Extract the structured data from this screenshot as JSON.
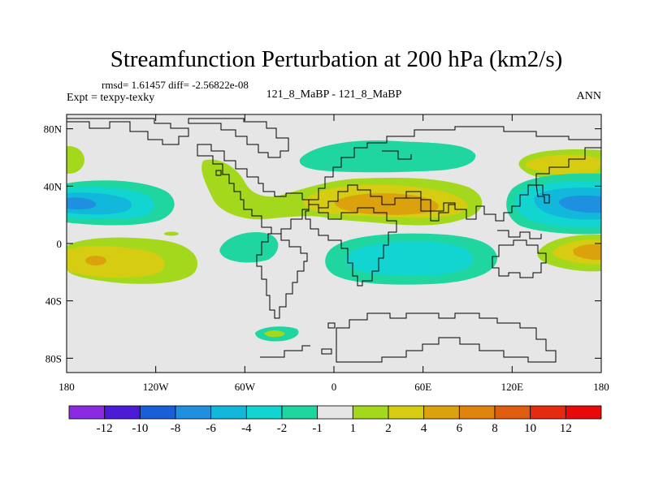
{
  "chart_data": {
    "type": "heatmap",
    "subtype": "filled-contour-map",
    "title": "Streamfunction Perturbation at 200 hPa (km2/s)",
    "stats_text": "rmsd= 1.61457 diff= -2.56822e-08",
    "experiment_label": "Expt = texpy-texky",
    "case_label": "121_8_MaBP - 121_8_MaBP",
    "season_label": "ANN",
    "x_axis": {
      "range": [
        -180,
        180
      ],
      "ticks": [
        {
          "value": -180,
          "label": "180"
        },
        {
          "value": -120,
          "label": "120W"
        },
        {
          "value": -60,
          "label": "60W"
        },
        {
          "value": 0,
          "label": "0"
        },
        {
          "value": 60,
          "label": "60E"
        },
        {
          "value": 120,
          "label": "120E"
        },
        {
          "value": 180,
          "label": "180"
        }
      ]
    },
    "y_axis": {
      "range": [
        -90,
        90
      ],
      "ticks": [
        {
          "value": 80,
          "label": "80N"
        },
        {
          "value": 40,
          "label": "40N"
        },
        {
          "value": 0,
          "label": "0"
        },
        {
          "value": -40,
          "label": "40S"
        },
        {
          "value": -80,
          "label": "80S"
        }
      ]
    },
    "colorbar": {
      "labels": [
        "-12",
        "-10",
        "-8",
        "-6",
        "-4",
        "-2",
        "-1",
        "1",
        "2",
        "4",
        "6",
        "8",
        "10",
        "12"
      ],
      "colors": [
        "#8a2be2",
        "#4b1bd6",
        "#1a5fd8",
        "#1f8fe0",
        "#12b8dc",
        "#12d4d0",
        "#1fd6a0",
        "#e6e6e6",
        "#a4d81c",
        "#d6cc12",
        "#dca20e",
        "#e0840e",
        "#e05c0e",
        "#e42a10",
        "#e60a0a"
      ]
    },
    "features": [
      {
        "name": "central-pacific-low-south",
        "center": [
          -176,
          24
        ],
        "extent": [
          30,
          13
        ],
        "level": "-6"
      },
      {
        "name": "east-asia-low-south",
        "center": [
          163,
          24
        ],
        "extent": [
          20,
          12
        ],
        "level": "-6"
      },
      {
        "name": "middle-east-high",
        "center": [
          38,
          25
        ],
        "extent": [
          47,
          14
        ],
        "level": "6"
      },
      {
        "name": "south-atlantic-low",
        "center": [
          37,
          -17
        ],
        "extent": [
          38,
          15
        ],
        "level": "-4"
      },
      {
        "name": "south-pacific-high",
        "center": [
          -159,
          -15
        ],
        "extent": [
          38,
          15
        ],
        "level": "4"
      },
      {
        "name": "south-indian-high",
        "center": [
          176,
          -7
        ],
        "extent": [
          40,
          13
        ],
        "level": "4"
      },
      {
        "name": "east-asia-high-north",
        "center": [
          152,
          53
        ],
        "extent": [
          16,
          7
        ],
        "level": "4"
      }
    ]
  }
}
